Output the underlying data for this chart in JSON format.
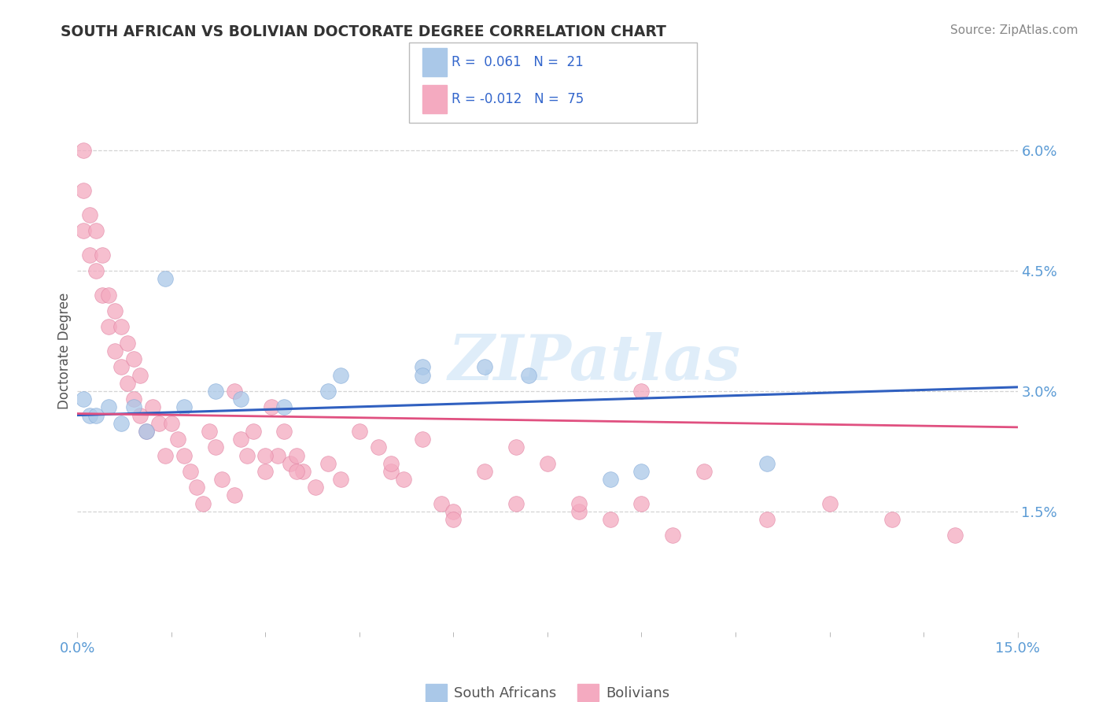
{
  "title": "SOUTH AFRICAN VS BOLIVIAN DOCTORATE DEGREE CORRELATION CHART",
  "source": "Source: ZipAtlas.com",
  "ylabel": "Doctorate Degree",
  "xlim": [
    0.0,
    0.15
  ],
  "ylim": [
    0.0,
    0.07
  ],
  "grid_color": "#d0d0d0",
  "background_color": "#ffffff",
  "blue_scatter_color": "#aac8e8",
  "pink_scatter_color": "#f4aac0",
  "blue_line_color": "#3060c0",
  "pink_line_color": "#e05080",
  "legend_label_blue": "South Africans",
  "legend_label_pink": "Bolivians",
  "watermark": "ZIPatlas",
  "title_color": "#333333",
  "source_color": "#888888",
  "tick_color": "#5b9bd5",
  "sa_x": [
    0.001,
    0.002,
    0.003,
    0.005,
    0.007,
    0.009,
    0.011,
    0.014,
    0.017,
    0.022,
    0.026,
    0.033,
    0.042,
    0.055,
    0.065,
    0.072,
    0.09,
    0.11,
    0.04,
    0.055,
    0.085
  ],
  "sa_y": [
    0.029,
    0.027,
    0.027,
    0.028,
    0.026,
    0.028,
    0.025,
    0.044,
    0.028,
    0.03,
    0.029,
    0.028,
    0.032,
    0.033,
    0.033,
    0.032,
    0.02,
    0.021,
    0.03,
    0.032,
    0.019
  ],
  "bo_x": [
    0.001,
    0.001,
    0.001,
    0.002,
    0.002,
    0.003,
    0.003,
    0.004,
    0.004,
    0.005,
    0.005,
    0.006,
    0.006,
    0.007,
    0.007,
    0.008,
    0.008,
    0.009,
    0.009,
    0.01,
    0.01,
    0.011,
    0.012,
    0.013,
    0.014,
    0.015,
    0.016,
    0.017,
    0.018,
    0.019,
    0.02,
    0.021,
    0.022,
    0.023,
    0.025,
    0.026,
    0.027,
    0.028,
    0.03,
    0.031,
    0.032,
    0.033,
    0.034,
    0.035,
    0.036,
    0.038,
    0.04,
    0.042,
    0.045,
    0.048,
    0.05,
    0.052,
    0.055,
    0.058,
    0.06,
    0.065,
    0.07,
    0.075,
    0.08,
    0.085,
    0.09,
    0.095,
    0.1,
    0.11,
    0.12,
    0.13,
    0.14,
    0.05,
    0.07,
    0.09,
    0.025,
    0.03,
    0.035,
    0.06,
    0.08
  ],
  "bo_y": [
    0.06,
    0.055,
    0.05,
    0.052,
    0.047,
    0.05,
    0.045,
    0.047,
    0.042,
    0.042,
    0.038,
    0.04,
    0.035,
    0.038,
    0.033,
    0.036,
    0.031,
    0.034,
    0.029,
    0.032,
    0.027,
    0.025,
    0.028,
    0.026,
    0.022,
    0.026,
    0.024,
    0.022,
    0.02,
    0.018,
    0.016,
    0.025,
    0.023,
    0.019,
    0.03,
    0.024,
    0.022,
    0.025,
    0.02,
    0.028,
    0.022,
    0.025,
    0.021,
    0.022,
    0.02,
    0.018,
    0.021,
    0.019,
    0.025,
    0.023,
    0.02,
    0.019,
    0.024,
    0.016,
    0.015,
    0.02,
    0.016,
    0.021,
    0.015,
    0.014,
    0.016,
    0.012,
    0.02,
    0.014,
    0.016,
    0.014,
    0.012,
    0.021,
    0.023,
    0.03,
    0.017,
    0.022,
    0.02,
    0.014,
    0.016
  ]
}
